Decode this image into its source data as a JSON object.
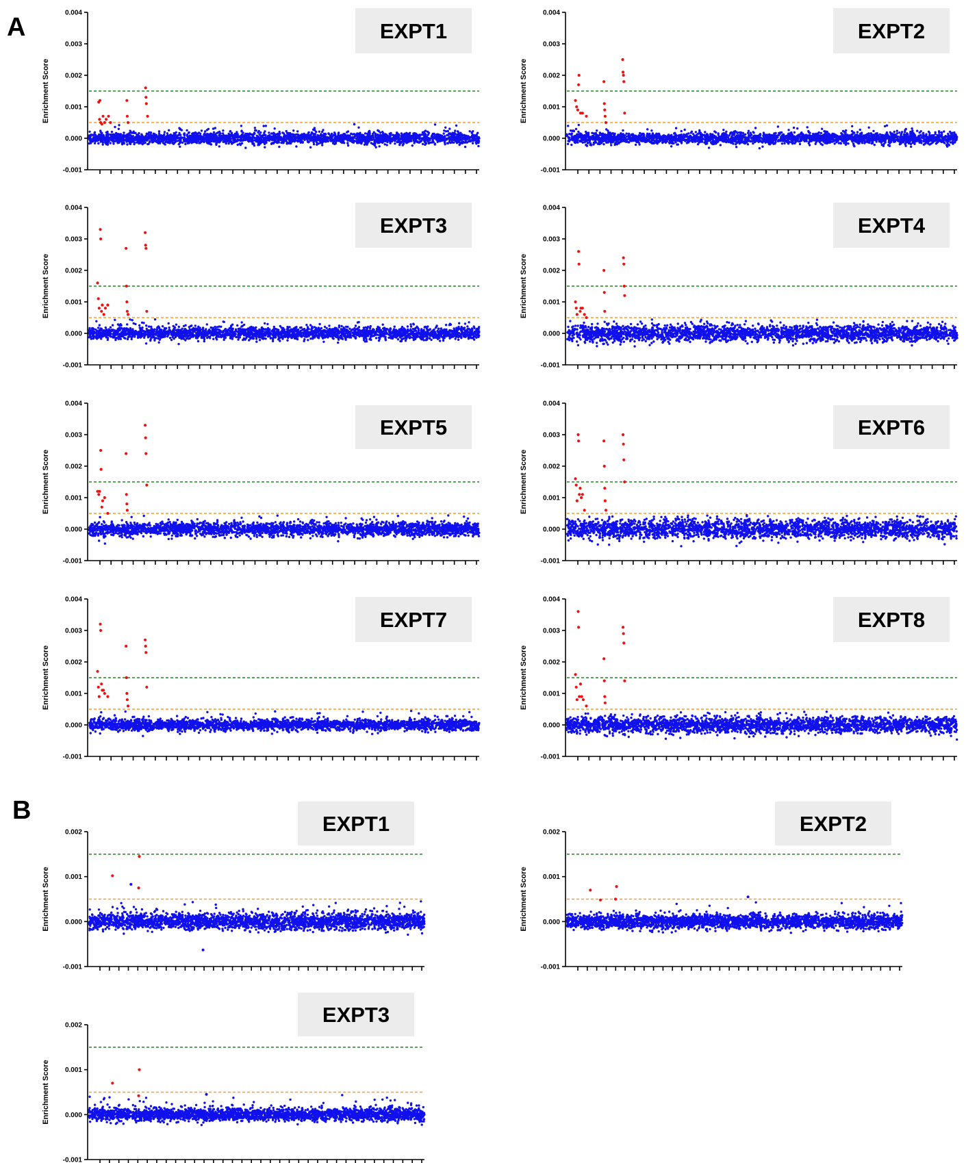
{
  "figure": {
    "panel_labels": [
      "A",
      "B"
    ]
  },
  "colors": {
    "background_points": "#1010ee",
    "hit_points": "#ee1111",
    "upper_threshold_line": "#1a8a1a",
    "lower_threshold_line": "#ff9a1a",
    "title_box": "#ececec"
  },
  "chart_data": [
    {
      "panel": "A",
      "title": "EXPT1",
      "type": "scatter",
      "ylabel": "Enrichment Score",
      "ylim": [
        -0.001,
        0.004
      ],
      "yticks": [
        "-0.001",
        "0.000",
        "0.001",
        "0.002",
        "0.003",
        "0.004"
      ],
      "thresholds": [
        0.0015,
        0.0005
      ],
      "background": {
        "n": 2600,
        "sigma": 9e-05
      },
      "hits": [
        [
          0.025,
          0.00115
        ],
        [
          0.028,
          0.0012
        ],
        [
          0.027,
          0.0006
        ],
        [
          0.03,
          0.0005
        ],
        [
          0.033,
          0.00045
        ],
        [
          0.036,
          0.0007
        ],
        [
          0.04,
          0.0005
        ],
        [
          0.044,
          0.0006
        ],
        [
          0.05,
          0.0007
        ],
        [
          0.055,
          0.0005
        ],
        [
          0.097,
          0.0012
        ],
        [
          0.098,
          0.0007
        ],
        [
          0.1,
          0.0005
        ],
        [
          0.145,
          0.0016
        ],
        [
          0.146,
          0.0013
        ],
        [
          0.147,
          0.0011
        ],
        [
          0.15,
          0.0007
        ]
      ]
    },
    {
      "panel": "A",
      "title": "EXPT2",
      "type": "scatter",
      "ylabel": "Enrichment Score",
      "ylim": [
        -0.001,
        0.004
      ],
      "yticks": [
        "-0.001",
        "0.000",
        "0.001",
        "0.002",
        "0.003",
        "0.004"
      ],
      "thresholds": [
        0.0015,
        0.0005
      ],
      "background": {
        "n": 2600,
        "sigma": 9e-05
      },
      "hits": [
        [
          0.022,
          0.0012
        ],
        [
          0.025,
          0.001
        ],
        [
          0.028,
          0.0009
        ],
        [
          0.03,
          0.0017
        ],
        [
          0.031,
          0.002
        ],
        [
          0.035,
          0.0008
        ],
        [
          0.04,
          0.0008
        ],
        [
          0.05,
          0.0007
        ],
        [
          0.095,
          0.0018
        ],
        [
          0.096,
          0.0011
        ],
        [
          0.097,
          0.0009
        ],
        [
          0.098,
          0.0007
        ],
        [
          0.1,
          0.0005
        ],
        [
          0.143,
          0.0025
        ],
        [
          0.144,
          0.0021
        ],
        [
          0.145,
          0.002
        ],
        [
          0.146,
          0.0018
        ],
        [
          0.148,
          0.0008
        ]
      ]
    },
    {
      "panel": "A",
      "title": "EXPT3",
      "type": "scatter",
      "ylabel": "Enrichment Score",
      "ylim": [
        -0.001,
        0.004
      ],
      "yticks": [
        "-0.001",
        "0.000",
        "0.001",
        "0.002",
        "0.003",
        "0.004"
      ],
      "thresholds": [
        0.0015,
        0.0005
      ],
      "background": {
        "n": 2600,
        "sigma": 0.0001
      },
      "hits": [
        [
          0.022,
          0.0016
        ],
        [
          0.024,
          0.0011
        ],
        [
          0.026,
          0.0008
        ],
        [
          0.029,
          0.0033
        ],
        [
          0.03,
          0.003
        ],
        [
          0.032,
          0.0007
        ],
        [
          0.034,
          0.0009
        ],
        [
          0.038,
          0.0006
        ],
        [
          0.042,
          0.0008
        ],
        [
          0.048,
          0.0009
        ],
        [
          0.095,
          0.0027
        ],
        [
          0.096,
          0.0015
        ],
        [
          0.097,
          0.001
        ],
        [
          0.098,
          0.0007
        ],
        [
          0.1,
          0.0006
        ],
        [
          0.144,
          0.0032
        ],
        [
          0.145,
          0.0028
        ],
        [
          0.146,
          0.0027
        ],
        [
          0.148,
          0.0007
        ]
      ]
    },
    {
      "panel": "A",
      "title": "EXPT4",
      "type": "scatter",
      "ylabel": "Enrichment Score",
      "ylim": [
        -0.001,
        0.004
      ],
      "yticks": [
        "-0.001",
        "0.000",
        "0.001",
        "0.002",
        "0.003",
        "0.004"
      ],
      "thresholds": [
        0.0015,
        0.0005
      ],
      "background": {
        "n": 2600,
        "sigma": 0.00013
      },
      "hits": [
        [
          0.022,
          0.001
        ],
        [
          0.024,
          0.0008
        ],
        [
          0.026,
          0.0006
        ],
        [
          0.03,
          0.0026
        ],
        [
          0.031,
          0.0022
        ],
        [
          0.034,
          0.0007
        ],
        [
          0.036,
          0.0008
        ],
        [
          0.04,
          0.0008
        ],
        [
          0.045,
          0.0006
        ],
        [
          0.05,
          0.0005
        ],
        [
          0.095,
          0.002
        ],
        [
          0.096,
          0.0013
        ],
        [
          0.097,
          0.0007
        ],
        [
          0.145,
          0.0024
        ],
        [
          0.146,
          0.0022
        ],
        [
          0.147,
          0.0015
        ],
        [
          0.148,
          0.0012
        ]
      ]
    },
    {
      "panel": "A",
      "title": "EXPT5",
      "type": "scatter",
      "ylabel": "Enrichment Score",
      "ylim": [
        -0.001,
        0.004
      ],
      "yticks": [
        "-0.001",
        "0.000",
        "0.001",
        "0.002",
        "0.003",
        "0.004"
      ],
      "thresholds": [
        0.0015,
        0.0005
      ],
      "background": {
        "n": 2600,
        "sigma": 0.00011
      },
      "hits": [
        [
          0.022,
          0.0012
        ],
        [
          0.025,
          0.0011
        ],
        [
          0.027,
          0.0012
        ],
        [
          0.03,
          0.0025
        ],
        [
          0.031,
          0.0019
        ],
        [
          0.033,
          0.0007
        ],
        [
          0.035,
          0.0009
        ],
        [
          0.04,
          0.001
        ],
        [
          0.048,
          0.0005
        ],
        [
          0.095,
          0.0024
        ],
        [
          0.096,
          0.0011
        ],
        [
          0.097,
          0.0008
        ],
        [
          0.098,
          0.0006
        ],
        [
          0.144,
          0.0033
        ],
        [
          0.145,
          0.0029
        ],
        [
          0.146,
          0.0024
        ],
        [
          0.148,
          0.0014
        ]
      ]
    },
    {
      "panel": "A",
      "title": "EXPT6",
      "type": "scatter",
      "ylabel": "Enrichment Score",
      "ylim": [
        -0.001,
        0.004
      ],
      "yticks": [
        "-0.001",
        "0.000",
        "0.001",
        "0.002",
        "0.003",
        "0.004"
      ],
      "thresholds": [
        0.0015,
        0.0005
      ],
      "background": {
        "n": 2600,
        "sigma": 0.00015
      },
      "hits": [
        [
          0.022,
          0.0016
        ],
        [
          0.024,
          0.0014
        ],
        [
          0.026,
          0.0009
        ],
        [
          0.029,
          0.003
        ],
        [
          0.03,
          0.0028
        ],
        [
          0.032,
          0.0011
        ],
        [
          0.034,
          0.0013
        ],
        [
          0.037,
          0.001
        ],
        [
          0.04,
          0.0011
        ],
        [
          0.045,
          0.0006
        ],
        [
          0.095,
          0.0028
        ],
        [
          0.096,
          0.002
        ],
        [
          0.097,
          0.0013
        ],
        [
          0.098,
          0.0009
        ],
        [
          0.1,
          0.0006
        ],
        [
          0.144,
          0.003
        ],
        [
          0.145,
          0.0027
        ],
        [
          0.146,
          0.0022
        ],
        [
          0.148,
          0.0015
        ]
      ]
    },
    {
      "panel": "A",
      "title": "EXPT7",
      "type": "scatter",
      "ylabel": "Enrichment Score",
      "ylim": [
        -0.001,
        0.004
      ],
      "yticks": [
        "-0.001",
        "0.000",
        "0.001",
        "0.002",
        "0.003",
        "0.004"
      ],
      "thresholds": [
        0.0015,
        0.0005
      ],
      "background": {
        "n": 2600,
        "sigma": 9e-05
      },
      "hits": [
        [
          0.022,
          0.0017
        ],
        [
          0.024,
          0.0012
        ],
        [
          0.026,
          0.0009
        ],
        [
          0.029,
          0.0032
        ],
        [
          0.03,
          0.003
        ],
        [
          0.032,
          0.0013
        ],
        [
          0.034,
          0.0011
        ],
        [
          0.037,
          0.0011
        ],
        [
          0.04,
          0.001
        ],
        [
          0.048,
          0.0009
        ],
        [
          0.095,
          0.0025
        ],
        [
          0.096,
          0.0015
        ],
        [
          0.097,
          0.001
        ],
        [
          0.098,
          0.0008
        ],
        [
          0.1,
          0.0006
        ],
        [
          0.144,
          0.0027
        ],
        [
          0.145,
          0.0025
        ],
        [
          0.146,
          0.0023
        ],
        [
          0.148,
          0.0012
        ]
      ]
    },
    {
      "panel": "A",
      "title": "EXPT8",
      "type": "scatter",
      "ylabel": "Enrichment Score",
      "ylim": [
        -0.001,
        0.004
      ],
      "yticks": [
        "-0.001",
        "0.000",
        "0.001",
        "0.002",
        "0.003",
        "0.004"
      ],
      "thresholds": [
        0.0015,
        0.0005
      ],
      "background": {
        "n": 2600,
        "sigma": 0.00013
      },
      "hits": [
        [
          0.022,
          0.0016
        ],
        [
          0.024,
          0.0012
        ],
        [
          0.026,
          0.0008
        ],
        [
          0.029,
          0.0036
        ],
        [
          0.03,
          0.0031
        ],
        [
          0.032,
          0.0009
        ],
        [
          0.035,
          0.0013
        ],
        [
          0.038,
          0.0009
        ],
        [
          0.042,
          0.0008
        ],
        [
          0.05,
          0.0006
        ],
        [
          0.095,
          0.0021
        ],
        [
          0.096,
          0.0014
        ],
        [
          0.097,
          0.0009
        ],
        [
          0.098,
          0.0007
        ],
        [
          0.144,
          0.0031
        ],
        [
          0.145,
          0.0029
        ],
        [
          0.146,
          0.0026
        ],
        [
          0.148,
          0.0014
        ]
      ]
    },
    {
      "panel": "B",
      "title": "EXPT1",
      "type": "scatter",
      "ylabel": "Enrichment Score",
      "ylim": [
        -0.001,
        0.002
      ],
      "yticks": [
        "-0.001",
        "0.000",
        "0.001",
        "0.002"
      ],
      "thresholds": [
        0.0015,
        0.0005
      ],
      "background": {
        "n": 2600,
        "sigma": 9e-05
      },
      "hits": [
        [
          0.07,
          0.00102
        ],
        [
          0.15,
          0.00145
        ],
        [
          0.148,
          0.00075
        ]
      ],
      "outliers": [
        [
          0.125,
          0.00083
        ],
        [
          0.34,
          -0.00063
        ]
      ]
    },
    {
      "panel": "B",
      "title": "EXPT2",
      "type": "scatter",
      "ylabel": "Enrichment Score",
      "ylim": [
        -0.001,
        0.002
      ],
      "yticks": [
        "-0.001",
        "0.000",
        "0.001",
        "0.002"
      ],
      "thresholds": [
        0.0015,
        0.0005
      ],
      "background": {
        "n": 2600,
        "sigma": 8e-05
      },
      "hits": [
        [
          0.07,
          0.0007
        ],
        [
          0.1,
          0.00048
        ],
        [
          0.148,
          0.00078
        ],
        [
          0.145,
          0.0005
        ]
      ],
      "outliers": [
        [
          0.54,
          0.00055
        ]
      ]
    },
    {
      "panel": "B",
      "title": "EXPT3",
      "type": "scatter",
      "ylabel": "Enrichment Score",
      "ylim": [
        -0.001,
        0.002
      ],
      "yticks": [
        "-0.001",
        "0.000",
        "0.001",
        "0.002"
      ],
      "thresholds": [
        0.0015,
        0.0005
      ],
      "background": {
        "n": 2600,
        "sigma": 7e-05
      },
      "hits": [
        [
          0.07,
          0.0007
        ],
        [
          0.15,
          0.001
        ],
        [
          0.148,
          0.00042
        ]
      ],
      "outliers": [
        [
          0.35,
          0.00045
        ]
      ]
    }
  ]
}
